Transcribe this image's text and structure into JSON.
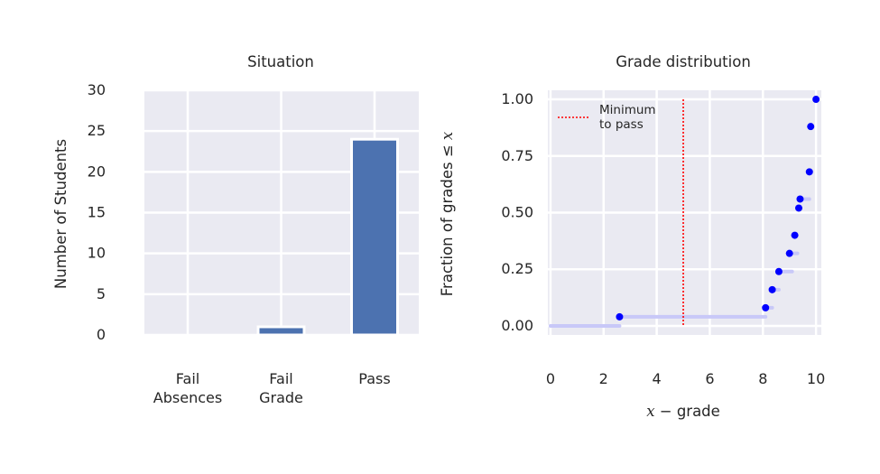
{
  "colors": {
    "panel_bg": "#eaeaf2",
    "grid": "#ffffff",
    "bar": "#4c72b0",
    "ecdf_line": "#c8c8f8",
    "ecdf_point": "#0000ff",
    "threshold": "#ff0000"
  },
  "chart_data": [
    {
      "type": "bar",
      "title": "Situation",
      "xlabel": "",
      "ylabel": "Number of Students",
      "categories": [
        [
          "Fail",
          "Absences"
        ],
        [
          "Fail",
          "Grade"
        ],
        [
          "Pass"
        ]
      ],
      "values": [
        0,
        1,
        24
      ],
      "ylim": [
        0,
        30
      ],
      "yticks": [
        "0",
        "5",
        "10",
        "15",
        "20",
        "25",
        "30"
      ],
      "grid": true
    },
    {
      "type": "scatter",
      "title": "Grade distribution",
      "xlabel_math": "x",
      "xlabel_rest": " − grade",
      "ylabel_text": "Fraction of grades ≤ ",
      "ylabel_math": "x",
      "xlim": [
        -0.1,
        10.2
      ],
      "ylim": [
        -0.04,
        1.04
      ],
      "xticks": [
        "0",
        "2",
        "4",
        "6",
        "8",
        "10"
      ],
      "yticks": [
        "0.00",
        "0.25",
        "0.50",
        "0.75",
        "1.00"
      ],
      "grid": true,
      "threshold": {
        "x": 5,
        "label_line1": "Minimum",
        "label_line2": "to pass"
      },
      "legend_position": "top-left",
      "steps": [
        {
          "x0": 0,
          "x1": 2.6,
          "y": 0
        },
        {
          "x0": 2.6,
          "x1": 8.1,
          "y": 0.04
        },
        {
          "x0": 8.1,
          "x1": 8.35,
          "y": 0.08
        },
        {
          "x0": 8.35,
          "x1": 8.6,
          "y": 0.16
        },
        {
          "x0": 8.6,
          "x1": 9.1,
          "y": 0.24
        },
        {
          "x0": 9.1,
          "x1": 9.3,
          "y": 0.32
        },
        {
          "x0": 9.4,
          "x1": 9.75,
          "y": 0.56
        }
      ],
      "points": [
        {
          "x": 2.6,
          "y": 0.04
        },
        {
          "x": 8.1,
          "y": 0.08
        },
        {
          "x": 8.35,
          "y": 0.16
        },
        {
          "x": 8.6,
          "y": 0.24
        },
        {
          "x": 9.0,
          "y": 0.32
        },
        {
          "x": 9.2,
          "y": 0.4
        },
        {
          "x": 9.35,
          "y": 0.52
        },
        {
          "x": 9.4,
          "y": 0.56
        },
        {
          "x": 9.75,
          "y": 0.68
        },
        {
          "x": 9.8,
          "y": 0.88
        },
        {
          "x": 10.0,
          "y": 1.0
        }
      ]
    }
  ]
}
